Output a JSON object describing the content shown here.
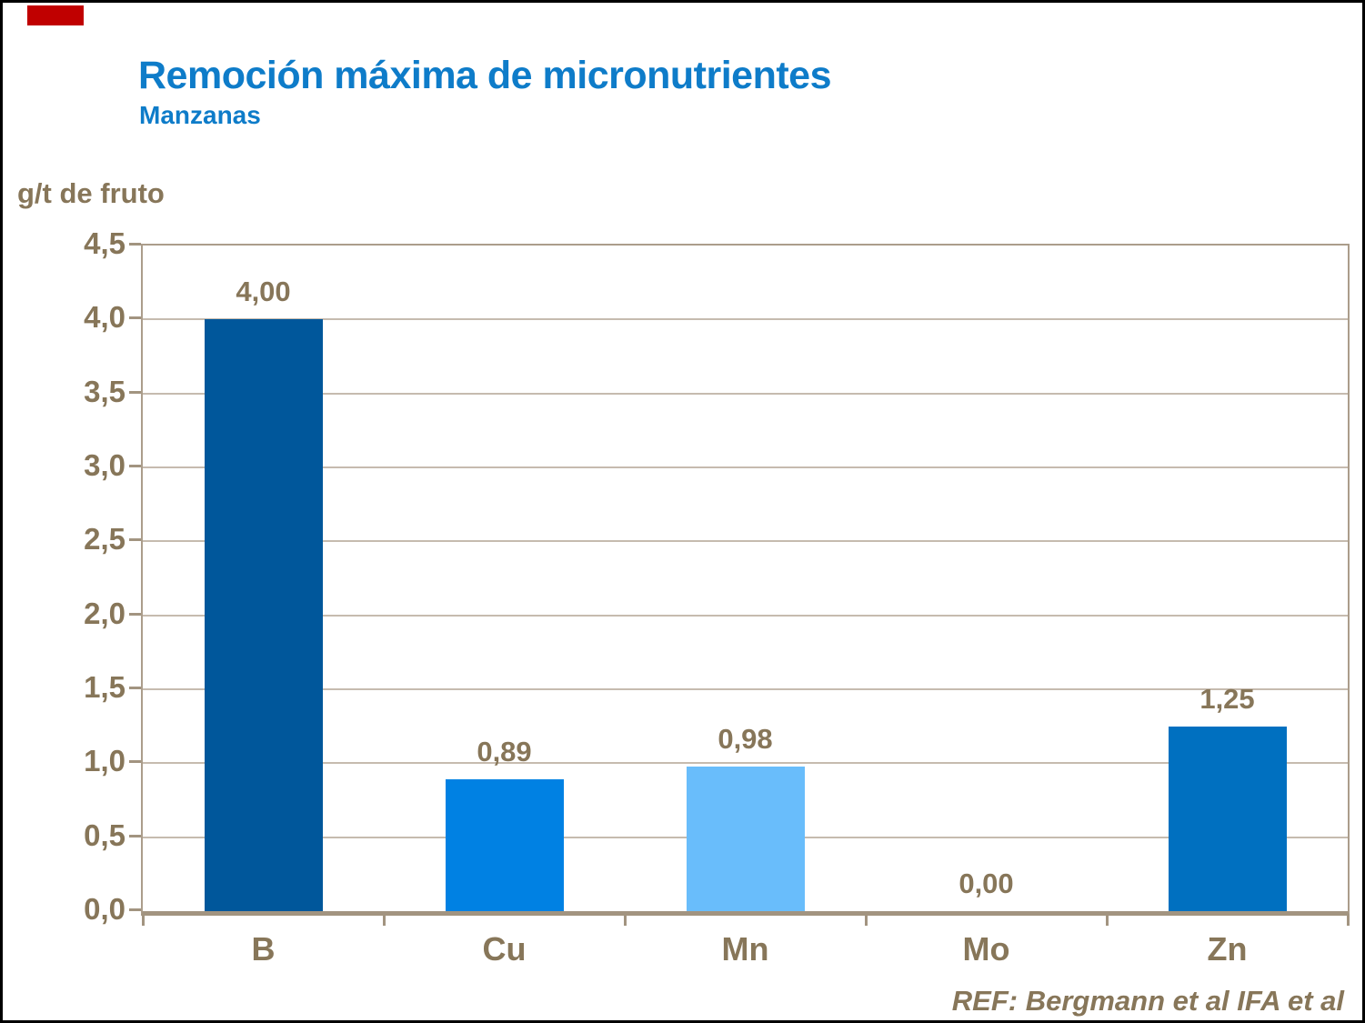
{
  "page": {
    "title": "Remoción máxima de micronutrientes",
    "subtitle": "Manzanas",
    "y_axis_title": "g/t de fruto",
    "reference": "REF: Bergmann et al IFA et al"
  },
  "colors": {
    "title_blue": "#0E7CC9",
    "label_brown": "#877659",
    "plot_border": "#AB9D8B",
    "axis_line": "#A29480",
    "gridline": "#C6BBAF",
    "accent_red": "#C00000",
    "page_border": "#000000"
  },
  "chart_data": {
    "type": "bar",
    "title": "Remoción máxima de micronutrientes",
    "subtitle": "Manzanas",
    "xlabel": "",
    "ylabel": "g/t de fruto",
    "categories": [
      "B",
      "Cu",
      "Mn",
      "Mo",
      "Zn"
    ],
    "values": [
      4.0,
      0.89,
      0.98,
      0.0,
      1.25
    ],
    "value_labels": [
      "4,00",
      "0,89",
      "0,98",
      "0,00",
      "1,25"
    ],
    "bar_colors": [
      "#00579B",
      "#0081E3",
      "#69BDFB",
      "#0070C0",
      "#0070C0"
    ],
    "ylim": [
      0,
      4.5
    ],
    "yticks": [
      0,
      0.5,
      1.0,
      1.5,
      2.0,
      2.5,
      3.0,
      3.5,
      4.0,
      4.5
    ],
    "ytick_labels": [
      "0,0",
      "0,5",
      "1,0",
      "1,5",
      "2,0",
      "2,5",
      "3,0",
      "3,5",
      "4,0",
      "4,5"
    ],
    "grid": true,
    "legend_position": "none",
    "decimal_separator": ",",
    "annotation": "REF: Bergmann et al IFA et al"
  }
}
